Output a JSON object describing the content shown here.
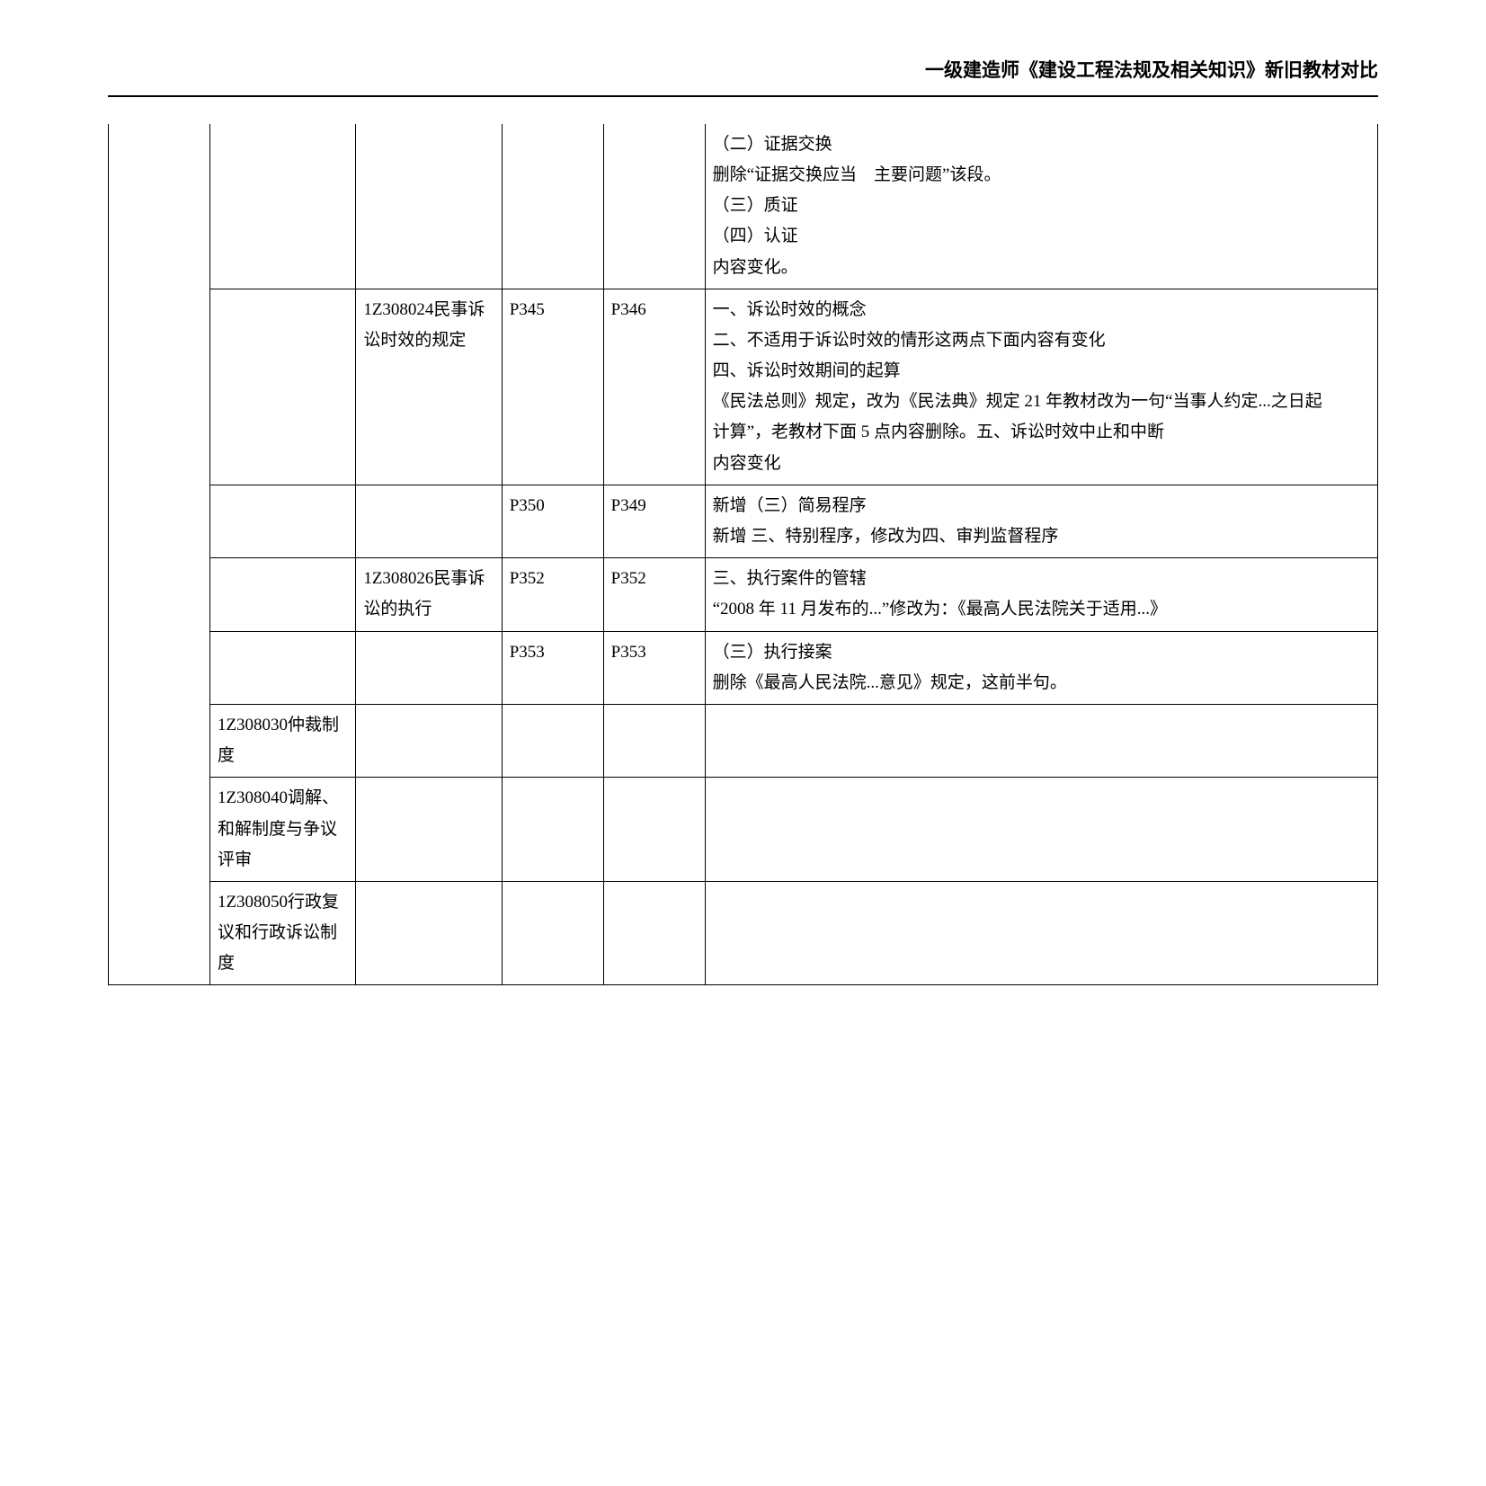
{
  "header": {
    "title": "一级建造师《建设工程法规及相关知识》新旧教材对比"
  },
  "table": {
    "rows": [
      {
        "col_b": "",
        "col_c": "",
        "col_d": "",
        "col_e": "",
        "col_f": "（二）证据交换\n删除“证据交换应当　主要问题”该段。\n（三）质证\n（四）认证\n内容变化。"
      },
      {
        "col_b": "",
        "col_c": "1Z308024民事诉讼时效的规定",
        "col_d": "P345",
        "col_e": "P346",
        "col_f": "一、诉讼时效的概念\n二、不适用于诉讼时效的情形这两点下面内容有变化\n四、诉讼时效期间的起算\n《民法总则》规定，改为《民法典》规定 21 年教材改为一句“当事人约定...之日起\n计算”，老教材下面 5 点内容删除。五、诉讼时效中止和中断\n内容变化"
      },
      {
        "col_b": "",
        "col_c": "",
        "col_d": "P350",
        "col_e": "P349",
        "col_f": "新增（三）简易程序\n新增 三、特别程序，修改为四、审判监督程序"
      },
      {
        "col_b": "",
        "col_c": "1Z308026民事诉讼的执行",
        "col_d": "P352",
        "col_e": "P352",
        "col_f": "三、执行案件的管辖\n“2008 年 11 月发布的...”修改为：《最高人民法院关于适用...》"
      },
      {
        "col_b": "",
        "col_c": "",
        "col_d": "P353",
        "col_e": "P353",
        "col_f": "（三）执行接案\n删除《最高人民法院...意见》规定，这前半句。"
      },
      {
        "col_b": "1Z308030仲裁制度",
        "col_c": "",
        "col_d": "",
        "col_e": "",
        "col_f": ""
      },
      {
        "col_b": "1Z308040调解、和解制度与争议评审",
        "col_c": "",
        "col_d": "",
        "col_e": "",
        "col_f": ""
      },
      {
        "col_b": "1Z308050行政复议和行政诉讼制度",
        "col_c": "",
        "col_d": "",
        "col_e": "",
        "col_f": ""
      }
    ]
  }
}
